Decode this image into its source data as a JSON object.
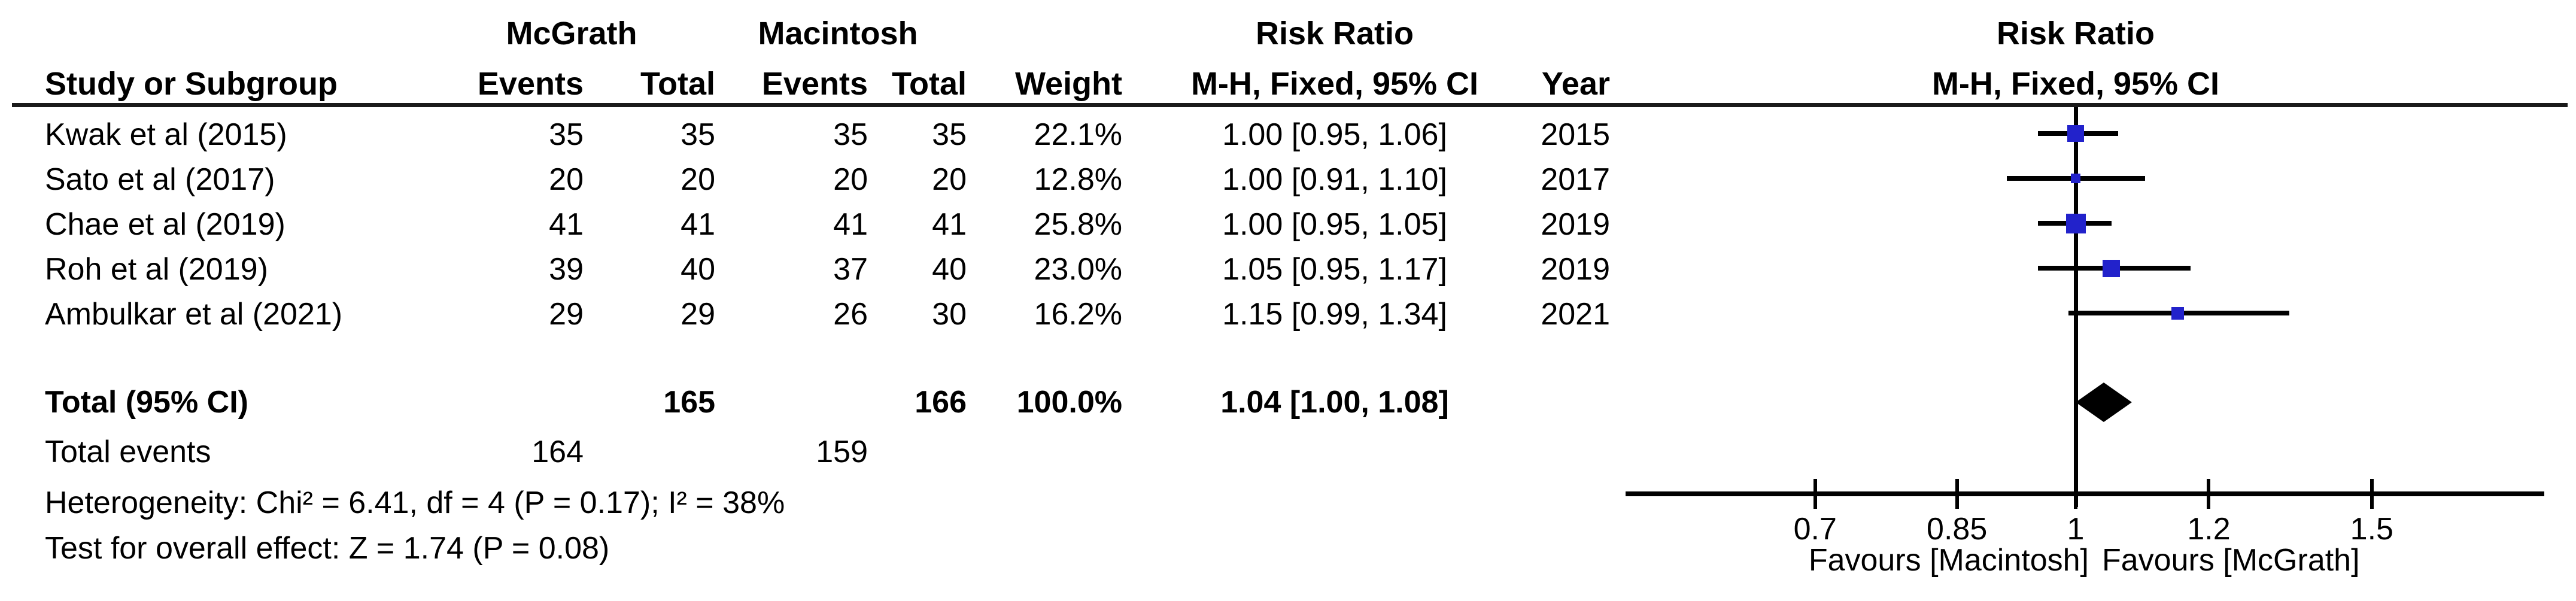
{
  "header": {
    "study": "Study or Subgroup",
    "group1": "McGrath",
    "group2": "Macintosh",
    "events": "Events",
    "total": "Total",
    "weight": "Weight",
    "risk_ratio": "Risk Ratio",
    "method_ci": "M-H, Fixed, 95% CI",
    "year": "Year"
  },
  "plot_header": {
    "title": "Risk Ratio",
    "subtitle": "M-H, Fixed, 95% CI"
  },
  "rows": [
    {
      "study": "Kwak et al (2015)",
      "e1": "35",
      "t1": "35",
      "e2": "35",
      "t2": "35",
      "weight": "22.1%",
      "ci": "1.00 [0.95, 1.06]",
      "year": "2015"
    },
    {
      "study": "Sato et al (2017)",
      "e1": "20",
      "t1": "20",
      "e2": "20",
      "t2": "20",
      "weight": "12.8%",
      "ci": "1.00 [0.91, 1.10]",
      "year": "2017"
    },
    {
      "study": "Chae et al (2019)",
      "e1": "41",
      "t1": "41",
      "e2": "41",
      "t2": "41",
      "weight": "25.8%",
      "ci": "1.00 [0.95, 1.05]",
      "year": "2019"
    },
    {
      "study": "Roh et al (2019)",
      "e1": "39",
      "t1": "40",
      "e2": "37",
      "t2": "40",
      "weight": "23.0%",
      "ci": "1.05 [0.95, 1.17]",
      "year": "2019"
    },
    {
      "study": "Ambulkar et al (2021)",
      "e1": "29",
      "t1": "29",
      "e2": "26",
      "t2": "30",
      "weight": "16.2%",
      "ci": "1.15 [0.99, 1.34]",
      "year": "2021"
    }
  ],
  "totals": {
    "label": "Total (95% CI)",
    "t1": "165",
    "t2": "166",
    "weight": "100.0%",
    "ci": "1.04 [1.00, 1.08]",
    "events_label": "Total events",
    "e1": "164",
    "e2": "159",
    "heterogeneity": "Heterogeneity: Chi² = 6.41, df = 4 (P = 0.17); I² = 38%",
    "overall_effect": "Test for overall effect: Z = 1.74 (P = 0.08)"
  },
  "chart_data": {
    "type": "forest",
    "x_scale": "log10",
    "axis_range": [
      0.54,
      1.9
    ],
    "ticks": [
      "0.7",
      "0.85",
      "1",
      "1.2",
      "1.5"
    ],
    "tick_values": [
      0.7,
      0.85,
      1,
      1.2,
      1.5
    ],
    "null_line": 1,
    "marker_color": "#2222CB",
    "line_color": "#000000",
    "studies": [
      {
        "name": "Kwak et al (2015)",
        "rr": 1.0,
        "lo": 0.95,
        "hi": 1.06,
        "weight_pct": 22.1,
        "year": 2015
      },
      {
        "name": "Sato et al (2017)",
        "rr": 1.0,
        "lo": 0.91,
        "hi": 1.1,
        "weight_pct": 12.8,
        "year": 2017
      },
      {
        "name": "Chae et al (2019)",
        "rr": 1.0,
        "lo": 0.95,
        "hi": 1.05,
        "weight_pct": 25.8,
        "year": 2019
      },
      {
        "name": "Roh et al (2019)",
        "rr": 1.05,
        "lo": 0.95,
        "hi": 1.17,
        "weight_pct": 23.0,
        "year": 2019
      },
      {
        "name": "Ambulkar et al (2021)",
        "rr": 1.15,
        "lo": 0.99,
        "hi": 1.34,
        "weight_pct": 16.2,
        "year": 2021
      }
    ],
    "total": {
      "rr": 1.04,
      "lo": 1.0,
      "hi": 1.08
    },
    "favours_left": "Favours [Macintosh]",
    "favours_right": "Favours [McGrath]"
  }
}
